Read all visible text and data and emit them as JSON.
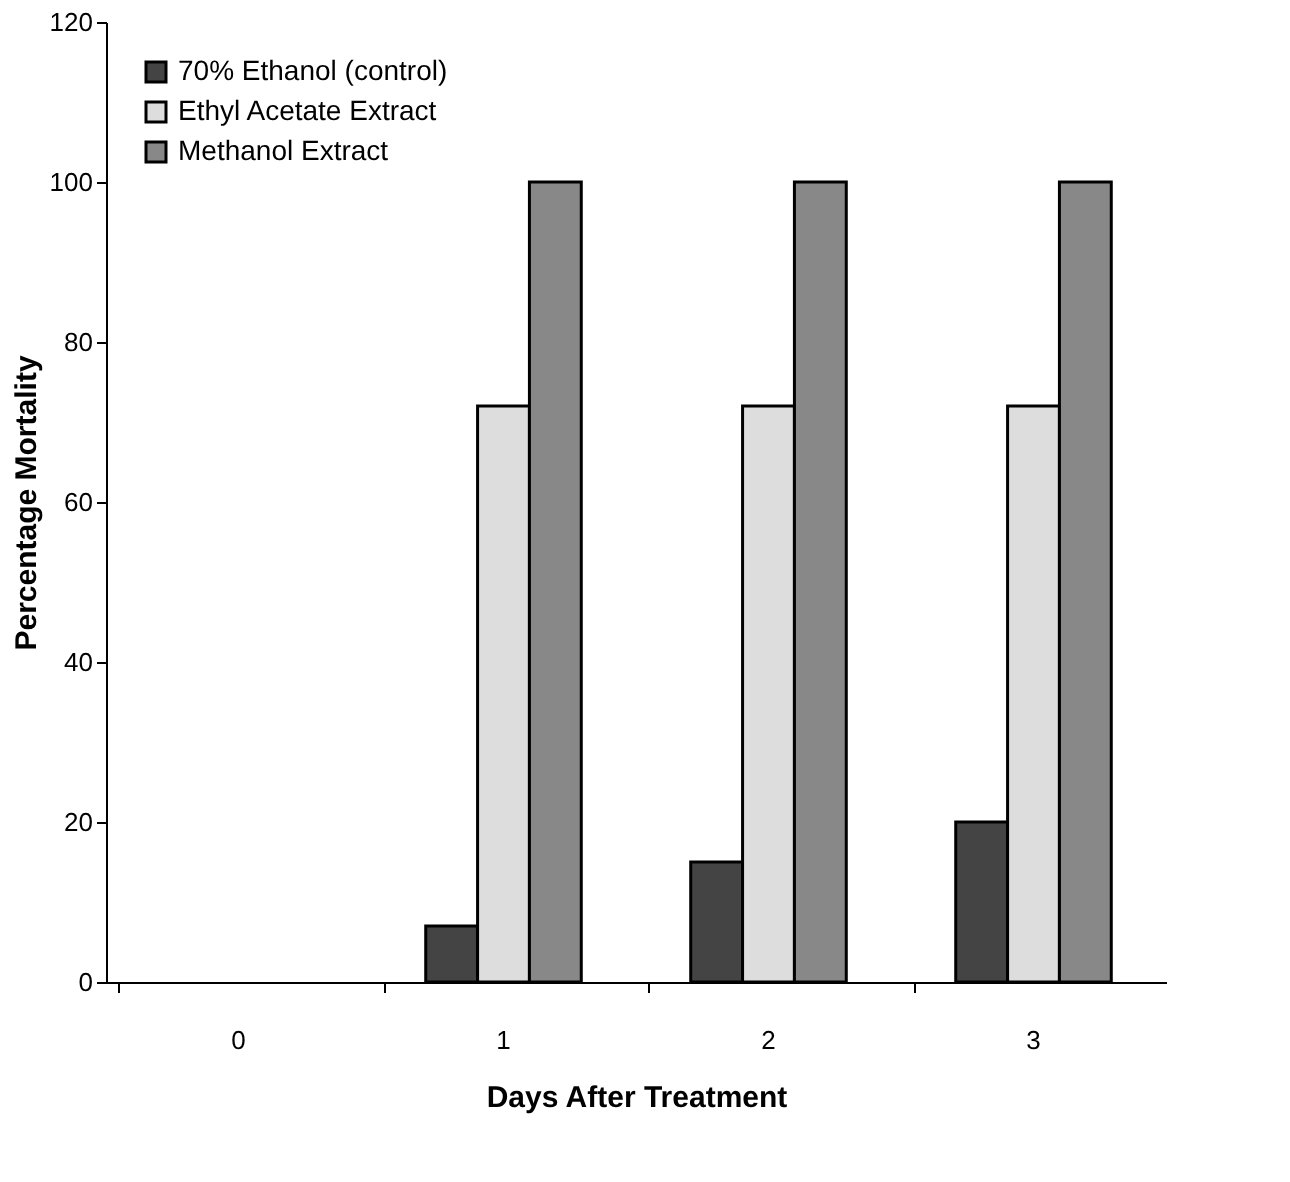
{
  "chart_data": {
    "type": "bar",
    "xlabel": "Days After Treatment",
    "ylabel": "Percentage Mortality",
    "categories": [
      "0",
      "1",
      "2",
      "3"
    ],
    "series": [
      {
        "name": "70% Ethanol (control)",
        "color": "#444444",
        "values": [
          0,
          7,
          15,
          20
        ]
      },
      {
        "name": "Ethyl Acetate Extract",
        "color": "#dddddd",
        "values": [
          0,
          72,
          72,
          72
        ]
      },
      {
        "name": "Methanol Extract",
        "color": "#888888",
        "values": [
          0,
          100,
          100,
          100
        ]
      }
    ],
    "ylim": [
      0,
      120
    ],
    "yticks": [
      0,
      20,
      40,
      60,
      80,
      100,
      120
    ],
    "grid": false,
    "legend": "top left"
  }
}
